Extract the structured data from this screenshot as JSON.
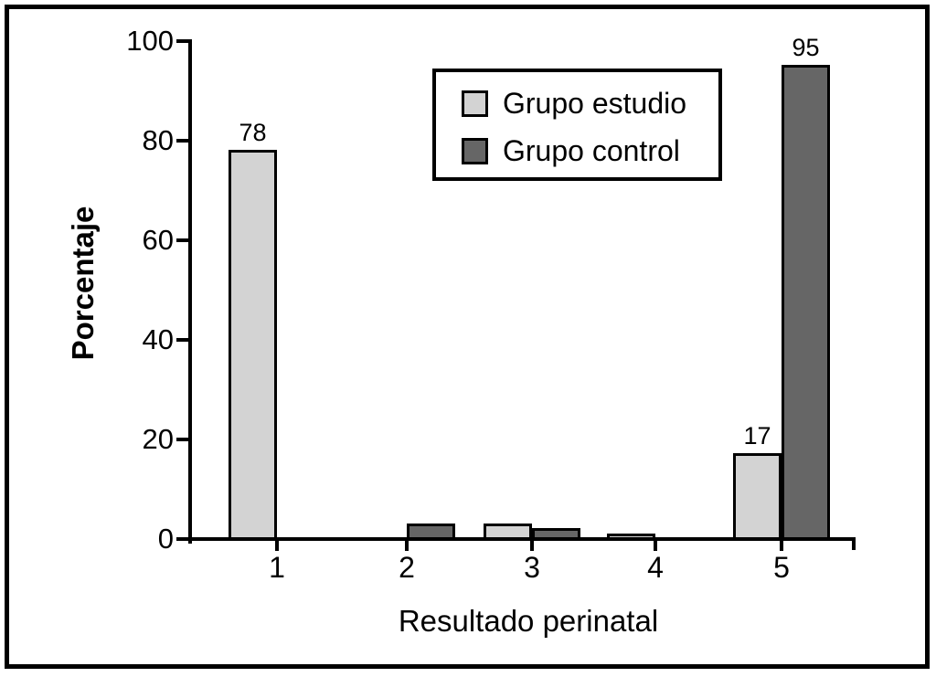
{
  "figure": {
    "background": "#ffffff",
    "border_color": "#000000"
  },
  "chart_data": {
    "type": "bar",
    "title": "",
    "xlabel": "Resultado perinatal",
    "ylabel": "Porcentaje",
    "categories": [
      "1",
      "2",
      "3",
      "4",
      "5"
    ],
    "series": [
      {
        "name": "Grupo estudio",
        "color": "#d3d3d3",
        "values": [
          78,
          0,
          3,
          1,
          17
        ],
        "value_labels": [
          "78",
          "",
          "",
          "",
          "17"
        ]
      },
      {
        "name": "Grupo control",
        "color": "#666666",
        "values": [
          0,
          3,
          2,
          0,
          95
        ],
        "value_labels": [
          "",
          "",
          "",
          "",
          "95"
        ]
      }
    ],
    "ylim": [
      0,
      100
    ],
    "yticks": [
      0,
      20,
      40,
      60,
      80,
      100
    ],
    "grid": false,
    "legend_position": "top-right",
    "axis_color": "#000000",
    "bar_border_color": "#000000"
  }
}
